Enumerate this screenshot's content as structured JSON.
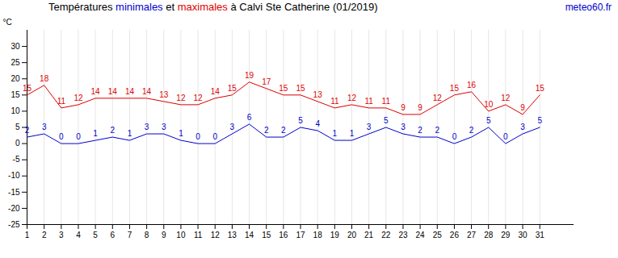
{
  "chart_data": {
    "type": "line",
    "title": "Températures minimales et maximales à Calvi Ste Catherine (01/2019)",
    "source": "meteo60.fr",
    "ylabel": "°C",
    "x": [
      1,
      2,
      3,
      4,
      5,
      6,
      7,
      8,
      9,
      10,
      11,
      12,
      13,
      14,
      15,
      16,
      17,
      18,
      19,
      20,
      21,
      22,
      23,
      24,
      25,
      26,
      27,
      28,
      29,
      30,
      31
    ],
    "series": [
      {
        "name": "minimales",
        "color": "#0000cc",
        "values": [
          2,
          3,
          0,
          0,
          1,
          2,
          1,
          3,
          3,
          1,
          0,
          0,
          3,
          6,
          2,
          2,
          5,
          4,
          1,
          1,
          3,
          5,
          3,
          2,
          2,
          0,
          2,
          5,
          0,
          3,
          5
        ]
      },
      {
        "name": "maximales",
        "color": "#dd0000",
        "values": [
          15,
          18,
          11,
          12,
          14,
          14,
          14,
          14,
          13,
          12,
          12,
          14,
          15,
          19,
          17,
          15,
          15,
          13,
          11,
          12,
          11,
          11,
          9,
          9,
          12,
          15,
          16,
          10,
          12,
          9,
          15
        ]
      }
    ],
    "xlim": [
      1,
      33
    ],
    "xticks": [
      1,
      2,
      3,
      4,
      5,
      6,
      7,
      8,
      9,
      10,
      11,
      12,
      13,
      14,
      15,
      16,
      17,
      18,
      19,
      20,
      21,
      22,
      23,
      24,
      25,
      26,
      27,
      28,
      29,
      30,
      31
    ],
    "ylim": [
      -25,
      35
    ],
    "yticks": [
      -25,
      -20,
      -15,
      -10,
      -5,
      0,
      5,
      10,
      15,
      20,
      25,
      30
    ],
    "grid": "x",
    "data_labels": true
  }
}
